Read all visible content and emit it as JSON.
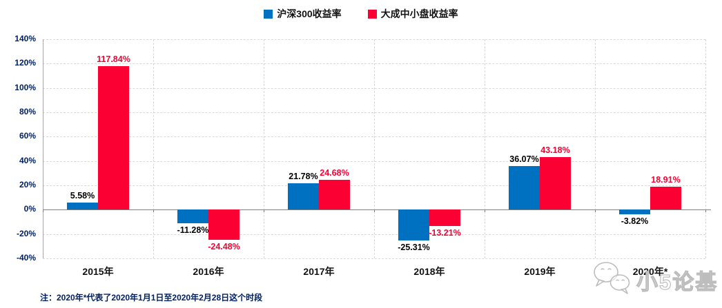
{
  "legend": {
    "position": "top-center",
    "items": [
      {
        "label": "沪深300收益率",
        "color": "#0070C0"
      },
      {
        "label": "大成中小盘收益率",
        "color": "#FA0033"
      }
    ]
  },
  "chart_data": {
    "type": "bar",
    "categories": [
      "2015年",
      "2016年",
      "2017年",
      "2018年",
      "2019年",
      "2020年*"
    ],
    "series": [
      {
        "name": "沪深300收益率",
        "color": "#0070C0",
        "label_color": "#000000",
        "values": [
          5.58,
          -11.28,
          21.78,
          -25.31,
          36.07,
          -3.82
        ],
        "labels": [
          "5.58%",
          "-11.28%",
          "21.78%",
          "-25.31%",
          "36.07%",
          "-3.82%"
        ]
      },
      {
        "name": "大成中小盘收益率",
        "color": "#FA0033",
        "label_color": "#FA0033",
        "values": [
          117.84,
          -24.48,
          24.68,
          -13.21,
          43.18,
          18.91
        ],
        "labels": [
          "117.84%",
          "-24.48%",
          "24.68%",
          "-13.21%",
          "43.18%",
          "18.91%"
        ]
      }
    ],
    "title": "",
    "xlabel": "",
    "ylabel": "",
    "ylim": [
      -40,
      140
    ],
    "ytick_step": 20,
    "ytick_labels": [
      "140%",
      "120%",
      "100%",
      "80%",
      "60%",
      "40%",
      "20%",
      "0%",
      "-20%",
      "-40%"
    ],
    "grid": "dashed horizontal gridlines every 20% and dashed vertical lines at category boundaries",
    "legend_position": "top-center",
    "value_suffix": "%"
  },
  "note": "注：2020年*代表了2020年1月1日至2020年2月28日这个时段",
  "watermark": {
    "text": "小5论基",
    "icon": "chat-bubbles-icon"
  },
  "colors": {
    "series_blue": "#0070C0",
    "series_red": "#FA0033",
    "gridline": "#d9d9d9",
    "zero_axis": "#808080",
    "y_axis_line": "#a6a6a6",
    "axis_label_navy": "#002060",
    "category_label": "#111111",
    "watermark_gray": "#bdbdbd",
    "background": "#ffffff"
  }
}
